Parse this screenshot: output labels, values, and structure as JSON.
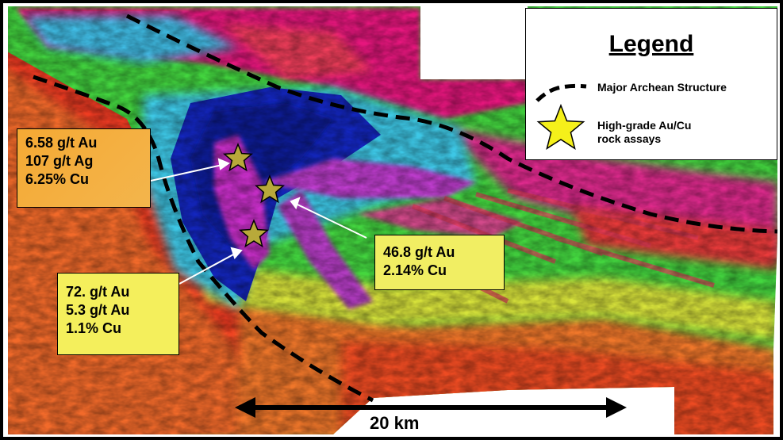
{
  "legend": {
    "title": "Legend",
    "structure_label": "Major Archean Structure",
    "assay_label_line1": "High-grade Au/Cu",
    "assay_label_line2": "rock assays",
    "structure_color": "#000000",
    "star_color": "#f5f01a"
  },
  "callouts": [
    {
      "lines": [
        "6.58  g/t Au",
        "107 g/t Ag",
        "6.25%  Cu"
      ],
      "bg": "#f5a934"
    },
    {
      "lines": [
        "46.8  g/t Au",
        "2.14%  Cu"
      ],
      "bg": "#f1ee63"
    },
    {
      "lines": [
        "72.  g/t Au",
        "5.3 g/t Au",
        "1.1%  Cu"
      ],
      "bg": "#f4ef5c"
    }
  ],
  "scale": {
    "label": "20 km"
  },
  "map_colors": {
    "magnetic_high": "#e0207a",
    "magnetic_mid": "#22d04a",
    "magnetic_low": "#1020b8",
    "ramp_warm": "#ef3b20"
  }
}
